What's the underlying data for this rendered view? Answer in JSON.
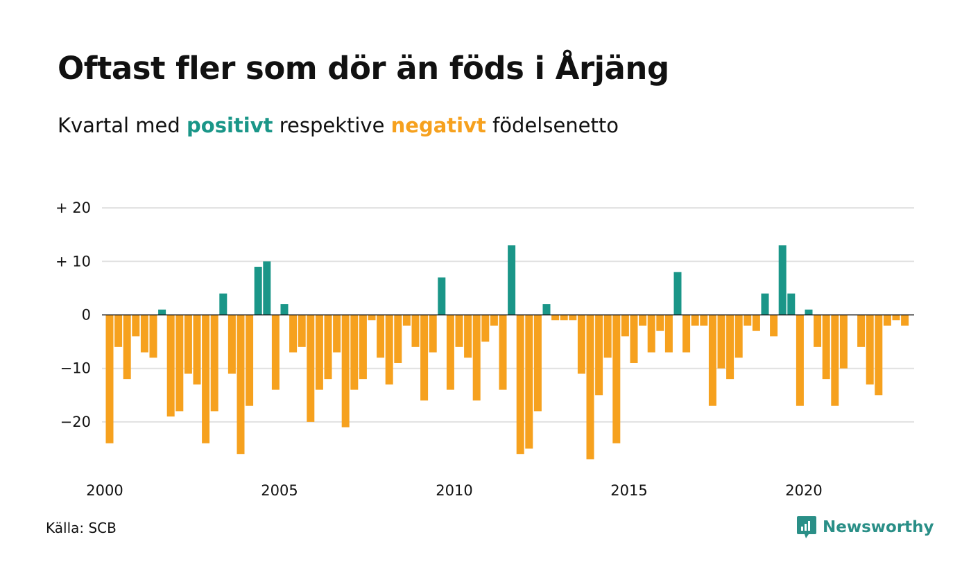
{
  "title": "Oftast fler som dör än föds i Årjäng",
  "subtitle": {
    "prefix": "Kvartal med",
    "positive_word": "positivt",
    "middle": "respektive",
    "negative_word": "negativt",
    "suffix": "födelsenetto"
  },
  "source": "Källa: SCB",
  "brand": "Newsworthy",
  "colors": {
    "positive": "#1a9688",
    "negative": "#f6a11e",
    "grid": "#e1e1e1",
    "zero_line": "#111111",
    "brand": "#2a8f87"
  },
  "chart_data": {
    "type": "bar",
    "x_start": 2000,
    "x_step": "quarter",
    "ylim": [
      -27,
      20
    ],
    "y_ticks": [
      {
        "value": 20,
        "label": "+ 20"
      },
      {
        "value": 10,
        "label": "+ 10"
      },
      {
        "value": 0,
        "label": "0"
      },
      {
        "value": -10,
        "label": "−10"
      },
      {
        "value": -20,
        "label": "−20"
      }
    ],
    "x_ticks": [
      "2000",
      "2005",
      "2010",
      "2015",
      "2020"
    ],
    "grid": true,
    "values": [
      -24,
      -6,
      -12,
      -4,
      -7,
      -8,
      1,
      -19,
      -18,
      -11,
      -13,
      -24,
      -18,
      4,
      -11,
      -26,
      -17,
      9,
      10,
      -14,
      2,
      -7,
      -6,
      -20,
      -14,
      -12,
      -7,
      -21,
      -14,
      -12,
      -1,
      -8,
      -13,
      -9,
      -2,
      -6,
      -16,
      -7,
      7,
      -14,
      -6,
      -8,
      -16,
      -5,
      -2,
      -14,
      13,
      -26,
      -25,
      -18,
      2,
      -1,
      -1,
      -1,
      -11,
      -27,
      -15,
      -8,
      -24,
      -4,
      -9,
      -2,
      -7,
      -3,
      -7,
      8,
      -7,
      -2,
      -2,
      -17,
      -10,
      -12,
      -8,
      -2,
      -3,
      4,
      -4,
      13,
      4,
      -17,
      1,
      -6,
      -12,
      -17,
      -10,
      0,
      -6,
      -13,
      -15,
      -2,
      -1,
      -2
    ]
  }
}
